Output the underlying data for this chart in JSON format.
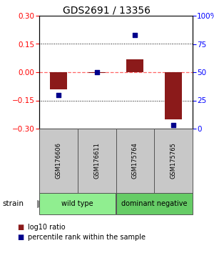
{
  "title": "GDS2691 / 13356",
  "samples": [
    "GSM176606",
    "GSM176611",
    "GSM175764",
    "GSM175765"
  ],
  "log10_ratio": [
    -0.09,
    -0.005,
    0.07,
    -0.25
  ],
  "percentile_rank": [
    30,
    50,
    83,
    3
  ],
  "groups": [
    {
      "name": "wild type",
      "samples": [
        0,
        1
      ],
      "color": "#90ee90"
    },
    {
      "name": "dominant negative",
      "samples": [
        2,
        3
      ],
      "color": "#66cc66"
    }
  ],
  "group_label": "strain",
  "ylim_left": [
    -0.3,
    0.3
  ],
  "ylim_right": [
    0,
    100
  ],
  "yticks_left": [
    -0.3,
    -0.15,
    0,
    0.15,
    0.3
  ],
  "yticks_right": [
    0,
    25,
    50,
    75,
    100
  ],
  "bar_color": "#8b1a1a",
  "dot_color": "#00008b",
  "bar_width": 0.45,
  "hline_color": "#ff6666",
  "grid_color": "#000000",
  "bg_color": "#ffffff",
  "legend_bar_label": "log10 ratio",
  "legend_dot_label": "percentile rank within the sample",
  "title_fontsize": 10,
  "tick_fontsize": 7.5,
  "label_fontsize": 7
}
